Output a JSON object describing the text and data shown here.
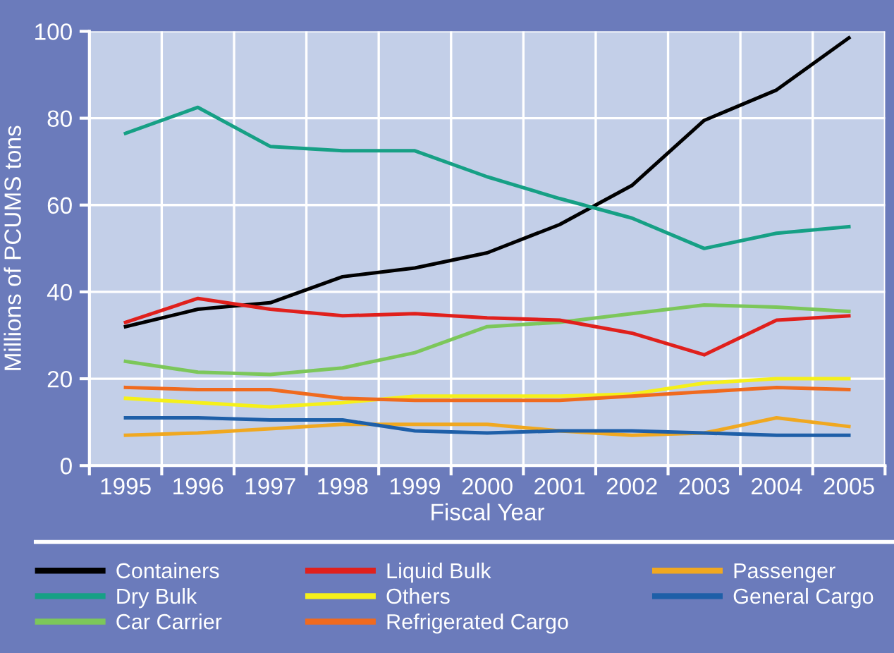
{
  "chart_data": {
    "type": "line",
    "xlabel": "Fiscal Year",
    "ylabel": "Millions of PCUMS tons",
    "categories": [
      "1995",
      "1996",
      "1997",
      "1998",
      "1999",
      "2000",
      "2001",
      "2002",
      "2003",
      "2004",
      "2005"
    ],
    "ylim": [
      0,
      100
    ],
    "yticks": [
      0,
      20,
      40,
      60,
      80,
      100
    ],
    "grid": true,
    "legend": "bottom",
    "marker": "none",
    "line_style": "solid",
    "series": [
      {
        "name": "Containers",
        "color": "#000000",
        "values": [
          32,
          36,
          37.5,
          43.5,
          45.5,
          49,
          55.5,
          64.5,
          79.5,
          86.5,
          98.5
        ]
      },
      {
        "name": "Dry Bulk",
        "color": "#16a085",
        "values": [
          76.5,
          82.5,
          73.5,
          72.5,
          72.5,
          66.5,
          61.5,
          57,
          50,
          53.5,
          55
        ]
      },
      {
        "name": "Car Carrier",
        "color": "#7cc75a",
        "values": [
          24,
          21.5,
          21,
          22.5,
          26,
          32,
          33,
          35,
          37,
          36.5,
          35.5
        ]
      },
      {
        "name": "Liquid Bulk",
        "color": "#e0201c",
        "values": [
          33,
          38.5,
          36,
          34.5,
          35,
          34,
          33.5,
          30.5,
          25.5,
          33.5,
          34.5
        ]
      },
      {
        "name": "Others",
        "color": "#f5f01a",
        "values": [
          15.5,
          14.5,
          13.5,
          14.5,
          16,
          16,
          16,
          16.5,
          19,
          20,
          20
        ]
      },
      {
        "name": "Refrigerated Cargo",
        "color": "#f06a1e",
        "values": [
          18,
          17.5,
          17.5,
          15.5,
          15,
          15,
          15,
          16,
          17,
          18,
          17.5
        ]
      },
      {
        "name": "Passenger",
        "color": "#f0a820",
        "values": [
          7,
          7.5,
          8.5,
          9.5,
          9.5,
          9.5,
          8,
          7,
          7.5,
          11,
          9
        ]
      },
      {
        "name": "General Cargo",
        "color": "#1e5fa8",
        "values": [
          11,
          11,
          10.5,
          10.5,
          8,
          7.5,
          8,
          8,
          7.5,
          7,
          7
        ]
      }
    ]
  }
}
